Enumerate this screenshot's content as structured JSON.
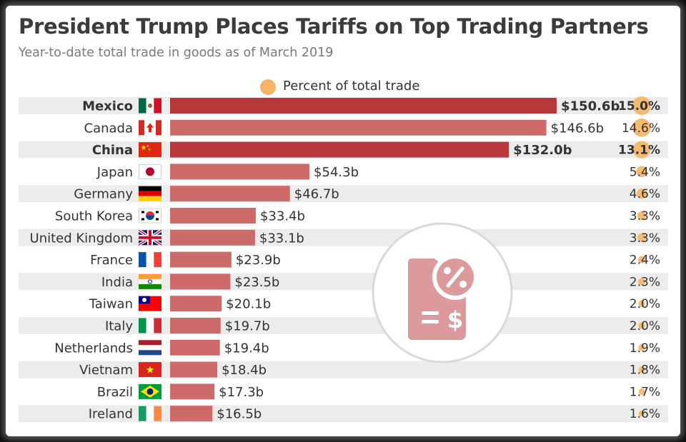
{
  "title": "President Trump Places Tariffs on Top Trading Partners",
  "subtitle": "Year-to-date total trade in goods as of March 2019",
  "legend": {
    "label": "Percent of total trade",
    "color": "#f5b566"
  },
  "colors": {
    "bar_highlight": "#b8373a",
    "bar": "#cd6a6a",
    "row_stripe": "#ececec",
    "dot": "#f5b566"
  },
  "chart_data": {
    "type": "bar",
    "orientation": "horizontal",
    "title": "President Trump Places Tariffs on Top Trading Partners",
    "subtitle": "Year-to-date total trade in goods as of March 2019",
    "categories": [
      "Mexico",
      "Canada",
      "China",
      "Japan",
      "Germany",
      "South Korea",
      "United Kingdom",
      "France",
      "India",
      "Taiwan",
      "Italy",
      "Netherlands",
      "Vietnam",
      "Brazil",
      "Ireland"
    ],
    "values": [
      150.6,
      146.6,
      132.0,
      54.3,
      46.7,
      33.4,
      33.1,
      23.9,
      23.5,
      20.1,
      19.7,
      19.4,
      18.4,
      17.3,
      16.5
    ],
    "value_labels": [
      "$150.6b",
      "$146.6b",
      "$132.0b",
      "$54.3b",
      "$46.7b",
      "$33.4b",
      "$33.1b",
      "$23.9b",
      "$23.5b",
      "$20.1b",
      "$19.7b",
      "$19.4b",
      "$18.4b",
      "$17.3b",
      "$16.5b"
    ],
    "percent": [
      15.0,
      14.6,
      13.1,
      5.4,
      4.6,
      3.3,
      3.3,
      2.4,
      2.3,
      2.0,
      2.0,
      1.9,
      1.8,
      1.7,
      1.6
    ],
    "percent_labels": [
      "15.0%",
      "14.6%",
      "13.1%",
      "5.4%",
      "4.6%",
      "3.3%",
      "3.3%",
      "2.4%",
      "2.3%",
      "2.0%",
      "2.0%",
      "1.9%",
      "1.8%",
      "1.7%",
      "1.6%"
    ],
    "highlighted": [
      "Mexico",
      "China"
    ],
    "flags": [
      "mexico-flag-icon",
      "canada-flag-icon",
      "china-flag-icon",
      "japan-flag-icon",
      "germany-flag-icon",
      "south-korea-flag-icon",
      "united-kingdom-flag-icon",
      "france-flag-icon",
      "india-flag-icon",
      "taiwan-flag-icon",
      "italy-flag-icon",
      "netherlands-flag-icon",
      "vietnam-flag-icon",
      "brazil-flag-icon",
      "ireland-flag-icon"
    ],
    "legend": [
      "Percent of total trade"
    ],
    "legend_position": "top-center",
    "grid": false
  }
}
